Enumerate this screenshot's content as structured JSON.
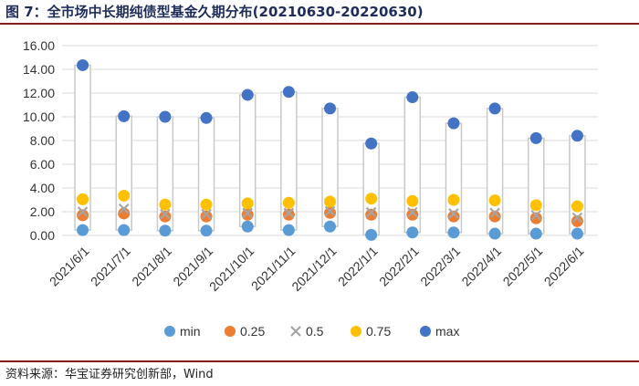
{
  "figure": {
    "title": "图 7：全市场中长期纯债型基金久期分布(20210630-20220630)",
    "source": "资料来源：华宝证券研究创新部，Wind"
  },
  "colors": {
    "min": "#5b9bd5",
    "p25": "#ed7d31",
    "p50": "#a5a5a5",
    "p75": "#ffc000",
    "max": "#4472c4",
    "box_border": "#c9c9c9",
    "grid": "#d9d9d9",
    "accent_rule": "#8b1a1a"
  },
  "chart_data": {
    "type": "scatter",
    "categories": [
      "2021/6/1",
      "2021/7/1",
      "2021/8/1",
      "2021/9/1",
      "2021/10/1",
      "2021/11/1",
      "2021/12/1",
      "2022/1/1",
      "2022/2/1",
      "2022/3/1",
      "2022/4/1",
      "2022/5/1",
      "2022/6/1"
    ],
    "yticks": [
      "0.00",
      "2.00",
      "4.00",
      "6.00",
      "8.00",
      "10.00",
      "12.00",
      "14.00",
      "16.00"
    ],
    "ylim": [
      0,
      16
    ],
    "grid": true,
    "legend_position": "bottom",
    "series": [
      {
        "key": "min",
        "name": "min",
        "marker": "circle",
        "values": [
          0.45,
          0.45,
          0.4,
          0.4,
          0.75,
          0.45,
          0.75,
          0.05,
          0.25,
          0.25,
          0.15,
          0.15,
          0.15
        ]
      },
      {
        "key": "p25",
        "name": "0.25",
        "marker": "circle",
        "values": [
          1.7,
          1.85,
          1.6,
          1.6,
          1.75,
          1.75,
          1.9,
          1.75,
          1.75,
          1.6,
          1.6,
          1.45,
          1.2
        ]
      },
      {
        "key": "p50",
        "name": "0.5",
        "marker": "x",
        "values": [
          2.0,
          2.25,
          1.8,
          1.8,
          1.9,
          1.9,
          2.05,
          1.95,
          1.95,
          1.85,
          1.9,
          1.7,
          1.5
        ]
      },
      {
        "key": "p75",
        "name": "0.75",
        "marker": "circle",
        "values": [
          3.05,
          3.35,
          2.6,
          2.6,
          2.7,
          2.75,
          2.85,
          3.1,
          2.9,
          3.0,
          2.95,
          2.55,
          2.45
        ]
      },
      {
        "key": "max",
        "name": "max",
        "marker": "circle",
        "values": [
          14.35,
          10.05,
          10.0,
          9.9,
          11.85,
          12.1,
          10.7,
          7.75,
          11.65,
          9.45,
          10.7,
          8.2,
          8.4
        ]
      }
    ]
  }
}
